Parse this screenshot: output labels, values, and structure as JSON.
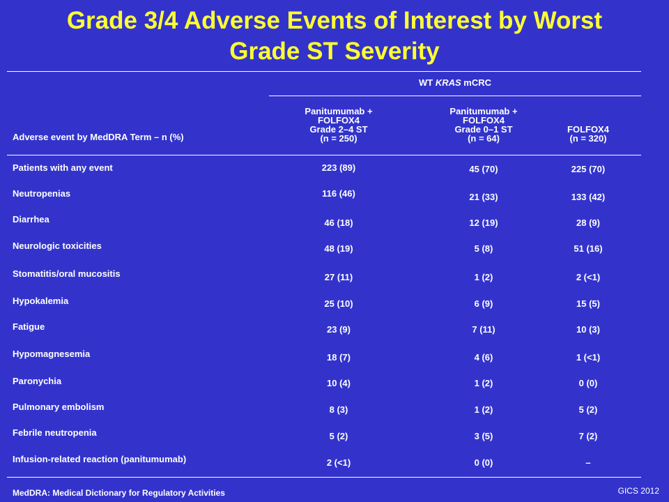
{
  "title": {
    "line1": "Grade 3/4 Adverse Events of Interest by Worst",
    "line2": "Grade ST Severity"
  },
  "table": {
    "group_header_prefix": "WT ",
    "group_header_italic": "KRAS",
    "group_header_suffix": " mCRC",
    "row_header": "Adverse event by MedDRA Term – n (%)",
    "columns": [
      {
        "line1": "Panitumumab +",
        "line2": "FOLFOX4",
        "line3": "Grade 2–4 ST",
        "line4": "(n = 250)"
      },
      {
        "line1": "Panitumumab +",
        "line2": "FOLFOX4",
        "line3": "Grade 0–1 ST",
        "line4": "(n = 64)"
      },
      {
        "line1": "",
        "line2": "",
        "line3": "FOLFOX4",
        "line4": "(n = 320)"
      }
    ],
    "rows": [
      {
        "label": "Patients with any event",
        "c1": "223 (89)",
        "c2": "45 (70)",
        "c3": "225 (70)"
      },
      {
        "label": "Neutropenias",
        "c1": "116 (46)",
        "c2": "21 (33)",
        "c3": "133 (42)"
      },
      {
        "label": "Diarrhea",
        "c1": "46 (18)",
        "c2": "12 (19)",
        "c3": "28 (9)"
      },
      {
        "label": "Neurologic toxicities",
        "c1": "48 (19)",
        "c2": "5 (8)",
        "c3": "51 (16)"
      },
      {
        "label": "Stomatitis/oral mucositis",
        "c1": "27 (11)",
        "c2": "1 (2)",
        "c3": "2 (<1)"
      },
      {
        "label": "Hypokalemia",
        "c1": "25 (10)",
        "c2": "6 (9)",
        "c3": "15 (5)"
      },
      {
        "label": "Fatigue",
        "c1": "23 (9)",
        "c2": "7 (11)",
        "c3": "10 (3)"
      },
      {
        "label": "Hypomagnesemia",
        "c1": "18 (7)",
        "c2": "4 (6)",
        "c3": "1 (<1)"
      },
      {
        "label": "Paronychia",
        "c1": "10 (4)",
        "c2": "1 (2)",
        "c3": "0 (0)"
      },
      {
        "label": "Pulmonary embolism",
        "c1": "8 (3)",
        "c2": "1 (2)",
        "c3": "5 (2)"
      },
      {
        "label": "Febrile neutropenia",
        "c1": "5 (2)",
        "c2": "3 (5)",
        "c3": "7 (2)"
      },
      {
        "label": "Infusion-related reaction (panitumumab)",
        "c1": "2 (<1)",
        "c2": "0 (0)",
        "c3": "–"
      }
    ]
  },
  "footnote": "MedDRA: Medical Dictionary for Regulatory Activities",
  "credit": "GICS 2012",
  "colors": {
    "background": "#3333cc",
    "title": "#ffff33",
    "text": "#ffffff"
  }
}
